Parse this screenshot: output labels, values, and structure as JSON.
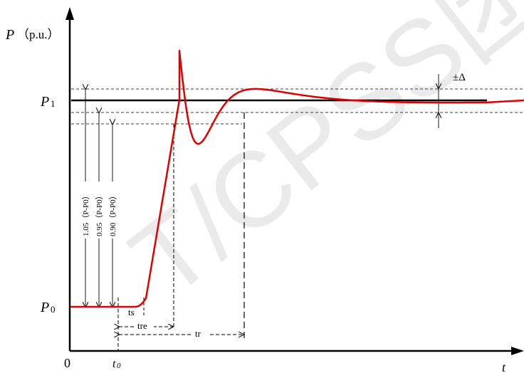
{
  "diagram": {
    "y_axis_label": "P",
    "y_axis_unit": "（p.u.）",
    "x_axis_label": "t",
    "origin_label": "0",
    "p1_label": "P",
    "p1_sub": "1",
    "p0_label": "P",
    "p0_sub": "0",
    "t0_label": "t",
    "t0_sub": "0",
    "tolerance_label": "±Δ",
    "ts_label": "ts",
    "tre_label": "tre",
    "tr_label": "tr",
    "label_105": "1.05（P-P0）",
    "label_095": "0.95（P-P0）",
    "label_090": "0.90（P-P0）",
    "watermark": "T/CPSS团"
  },
  "colors": {
    "response_curve": "#e00000",
    "axes": "#000000",
    "watermark": "#d9d9d9"
  }
}
